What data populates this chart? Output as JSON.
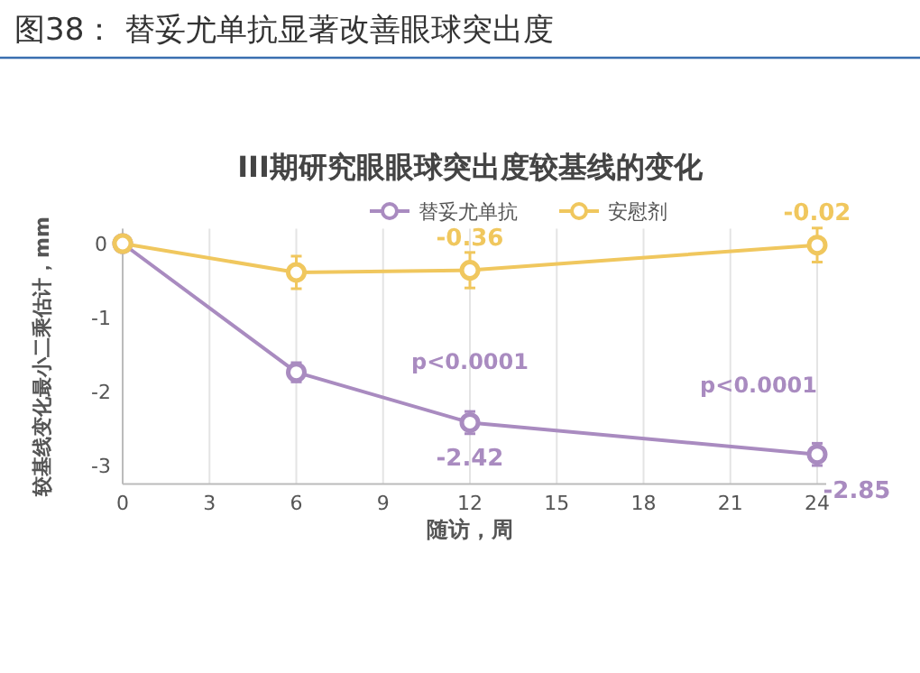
{
  "chart_data": {
    "type": "line",
    "title": "图38：  替妥尤单抗显著改善眼球突出度",
    "subtitle": "III期研究眼眼球突出度较基线的变化",
    "xlabel": "随访，周",
    "ylabel": "较基线变化最小二乘估计，mm",
    "x": [
      0,
      6,
      12,
      24
    ],
    "series": [
      {
        "name": "替妥尤单抗",
        "color": "#a98bc0",
        "values": [
          0,
          -1.74,
          -2.42,
          -2.85
        ],
        "errors": [
          null,
          0.13,
          0.15,
          0.15
        ],
        "value_labels": [
          null,
          null,
          "-2.42",
          "-2.85"
        ]
      },
      {
        "name": "安慰剂",
        "color": "#f0c75e",
        "values": [
          0,
          -0.39,
          -0.36,
          -0.02
        ],
        "errors": [
          null,
          0.22,
          0.24,
          0.23
        ],
        "value_labels": [
          null,
          null,
          "-0.36",
          "-0.02"
        ]
      }
    ],
    "annotations": [
      "p<0.0001",
      "p<0.0001"
    ],
    "xlim": [
      0,
      24
    ],
    "xticks": [
      0,
      3,
      6,
      9,
      12,
      15,
      18,
      21,
      24
    ],
    "ylim": [
      -3.25,
      0.2
    ],
    "yticks": [
      -3,
      -2,
      -1,
      0
    ],
    "grid": "x",
    "legend": "top",
    "marker": "circle",
    "line_style": "solid"
  }
}
